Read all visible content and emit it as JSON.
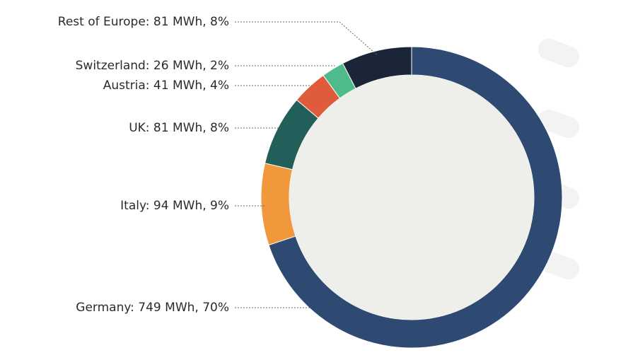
{
  "chart_data": {
    "type": "pie",
    "style": "donut",
    "unit": "MWh",
    "slices": [
      {
        "label": "Germany",
        "value": 749,
        "percent": 70,
        "text": "Germany: 749 MWh, 70%",
        "color": "#2e4a72"
      },
      {
        "label": "Italy",
        "value": 94,
        "percent": 9,
        "text": "Italy: 94 MWh, 9%",
        "color": "#f0983b"
      },
      {
        "label": "UK",
        "value": 81,
        "percent": 8,
        "text": "UK: 81 MWh, 8%",
        "color": "#235f5a"
      },
      {
        "label": "Austria",
        "value": 41,
        "percent": 4,
        "text": "Austria: 41 MWh, 4%",
        "color": "#e05a3c"
      },
      {
        "label": "Switzerland",
        "value": 26,
        "percent": 2,
        "text": "Switzerland: 26 MWh, 2%",
        "color": "#4fba8a"
      },
      {
        "label": "Rest of Europe",
        "value": 81,
        "percent": 8,
        "text": "Rest of Europe: 81 MWh, 8%",
        "color": "#1b2538"
      }
    ],
    "colors": {
      "donut_hole": "#eeeeea",
      "leader_line": "#666666",
      "text": "#2b2b2b"
    }
  }
}
